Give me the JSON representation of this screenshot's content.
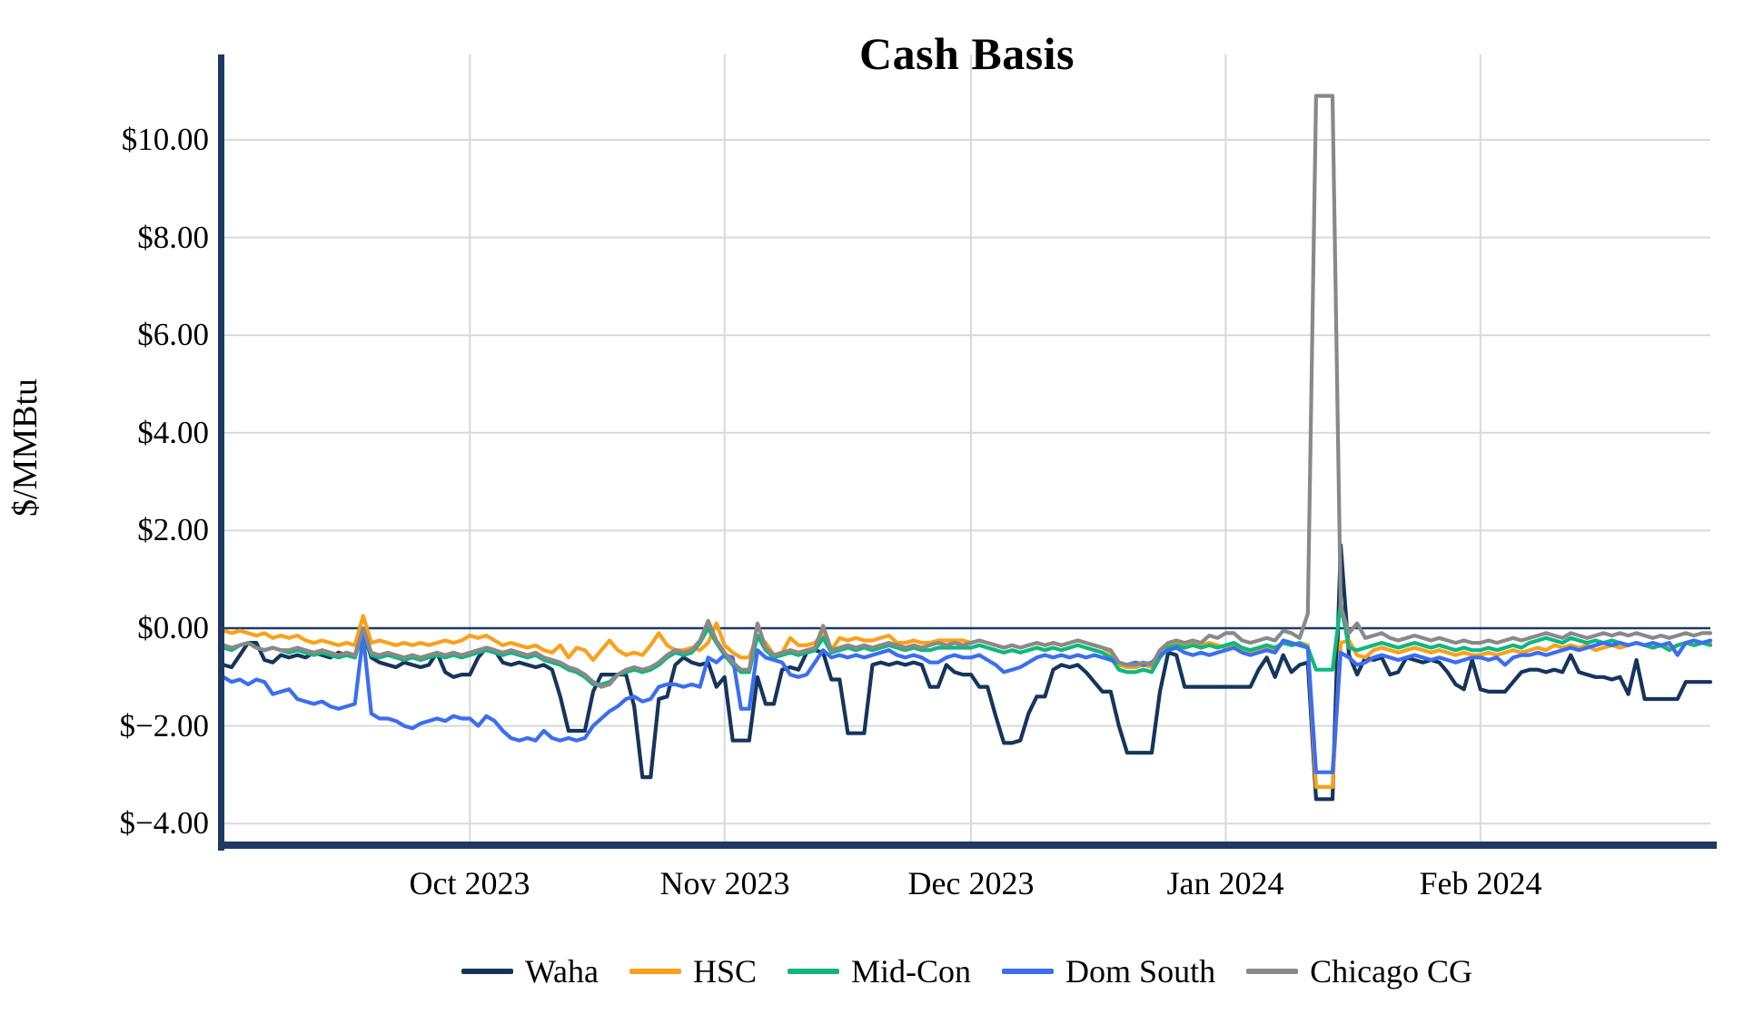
{
  "title": "Cash Basis",
  "y_axis": {
    "label": "$/MMBtu",
    "tick_values": [
      10,
      8,
      6,
      4,
      2,
      0,
      -2,
      -4
    ],
    "tick_labels": [
      "$10.00",
      "$8.00",
      "$6.00",
      "$4.00",
      "$2.00",
      "$0.00",
      "$−2.00",
      "$−4.00"
    ]
  },
  "x_axis": {
    "ticks": [
      {
        "day": 30,
        "label": "Oct 2023"
      },
      {
        "day": 61,
        "label": "Nov 2023"
      },
      {
        "day": 91,
        "label": "Dec 2023"
      },
      {
        "day": 122,
        "label": "Jan 2024"
      },
      {
        "day": 153,
        "label": "Feb 2024"
      }
    ]
  },
  "legend": [
    {
      "label": "Waha",
      "color": "#16355C"
    },
    {
      "label": "HSC",
      "color": "#F9A11B"
    },
    {
      "label": "Mid-Con",
      "color": "#0FB77F"
    },
    {
      "label": "Dom South",
      "color": "#3B6EF0"
    },
    {
      "label": "Chicago CG",
      "color": "#898989"
    }
  ],
  "colors": {
    "axis_spine": "#1F3864",
    "zero_line": "#1F3864",
    "gridline": "#D9D9D9",
    "background": "#FFFFFF"
  },
  "chart_data": {
    "type": "line",
    "title": "Cash Basis",
    "xlabel": "",
    "ylabel": "$/MMBtu",
    "ylim": [
      -4.45,
      11.65
    ],
    "grid": true,
    "legend_position": "bottom",
    "x_unit": "daily points, Sep 2023 through Feb 2024 (index 0 = first point)",
    "x_tick_days": [
      30,
      61,
      91,
      122,
      153
    ],
    "x_tick_labels": [
      "Oct 2023",
      "Nov 2023",
      "Dec 2023",
      "Jan 2024",
      "Feb 2024"
    ],
    "y_tick_values": [
      10,
      8,
      6,
      4,
      2,
      0,
      -2,
      -4
    ],
    "series": [
      {
        "name": "Waha",
        "color": "#16355C",
        "values": [
          -0.75,
          -0.8,
          -0.55,
          -0.3,
          -0.3,
          -0.65,
          -0.7,
          -0.55,
          -0.6,
          -0.55,
          -0.6,
          -0.5,
          -0.55,
          -0.6,
          -0.5,
          -0.55,
          -0.6,
          -0.05,
          -0.6,
          -0.7,
          -0.75,
          -0.8,
          -0.7,
          -0.75,
          -0.8,
          -0.75,
          -0.5,
          -0.9,
          -1.0,
          -0.95,
          -0.95,
          -0.6,
          -0.4,
          -0.45,
          -0.7,
          -0.75,
          -0.7,
          -0.75,
          -0.8,
          -0.75,
          -0.85,
          -1.4,
          -2.1,
          -2.1,
          -2.1,
          -1.3,
          -0.95,
          -0.95,
          -0.95,
          -0.95,
          -1.6,
          -3.05,
          -3.05,
          -1.45,
          -1.4,
          -0.75,
          -0.6,
          -0.7,
          -0.75,
          -0.7,
          -1.2,
          -1.0,
          -2.3,
          -2.3,
          -2.3,
          -1.0,
          -1.55,
          -1.55,
          -0.85,
          -0.8,
          -0.85,
          -0.5,
          -0.45,
          -0.5,
          -1.05,
          -1.05,
          -2.15,
          -2.15,
          -2.15,
          -0.75,
          -0.7,
          -0.75,
          -0.7,
          -0.75,
          -0.7,
          -0.75,
          -1.2,
          -1.2,
          -0.75,
          -0.9,
          -0.95,
          -0.95,
          -1.2,
          -1.2,
          -1.8,
          -2.35,
          -2.35,
          -2.3,
          -1.75,
          -1.4,
          -1.4,
          -0.85,
          -0.75,
          -0.8,
          -0.75,
          -0.9,
          -1.1,
          -1.3,
          -1.3,
          -2.0,
          -2.55,
          -2.55,
          -2.55,
          -2.55,
          -1.3,
          -0.5,
          -0.55,
          -1.2,
          -1.2,
          -1.2,
          -1.2,
          -1.2,
          -1.2,
          -1.2,
          -1.2,
          -1.2,
          -0.85,
          -0.6,
          -1.0,
          -0.55,
          -0.9,
          -0.75,
          -0.7,
          -3.5,
          -3.5,
          -3.5,
          1.7,
          -0.55,
          -0.95,
          -0.6,
          -0.65,
          -0.6,
          -0.95,
          -0.9,
          -0.6,
          -0.65,
          -0.7,
          -0.65,
          -0.7,
          -0.9,
          -1.15,
          -1.25,
          -0.65,
          -1.25,
          -1.3,
          -1.3,
          -1.3,
          -1.1,
          -0.9,
          -0.85,
          -0.85,
          -0.9,
          -0.85,
          -0.9,
          -0.55,
          -0.9,
          -0.95,
          -1.0,
          -1.0,
          -1.05,
          -1.0,
          -1.35,
          -0.65,
          -1.45,
          -1.45,
          -1.45,
          -1.45,
          -1.45,
          -1.1,
          -1.1,
          -1.1,
          -1.1
        ]
      },
      {
        "name": "HSC",
        "color": "#F9A11B",
        "values": [
          -0.05,
          -0.1,
          -0.05,
          -0.1,
          -0.15,
          -0.1,
          -0.2,
          -0.15,
          -0.2,
          -0.15,
          -0.25,
          -0.3,
          -0.25,
          -0.3,
          -0.35,
          -0.3,
          -0.35,
          0.25,
          -0.3,
          -0.25,
          -0.3,
          -0.35,
          -0.3,
          -0.35,
          -0.3,
          -0.35,
          -0.3,
          -0.25,
          -0.3,
          -0.25,
          -0.15,
          -0.2,
          -0.15,
          -0.25,
          -0.35,
          -0.3,
          -0.35,
          -0.4,
          -0.35,
          -0.45,
          -0.5,
          -0.35,
          -0.6,
          -0.4,
          -0.45,
          -0.65,
          -0.45,
          -0.25,
          -0.45,
          -0.55,
          -0.5,
          -0.55,
          -0.35,
          -0.1,
          -0.35,
          -0.45,
          -0.45,
          -0.4,
          -0.45,
          -0.3,
          0.1,
          -0.35,
          -0.5,
          -0.6,
          -0.6,
          -0.15,
          -0.3,
          -0.55,
          -0.5,
          -0.2,
          -0.35,
          -0.35,
          -0.3,
          -0.1,
          -0.45,
          -0.2,
          -0.25,
          -0.2,
          -0.25,
          -0.25,
          -0.2,
          -0.15,
          -0.3,
          -0.3,
          -0.25,
          -0.3,
          -0.3,
          -0.25,
          -0.25,
          -0.25,
          -0.25,
          -0.3,
          -0.25,
          -0.3,
          -0.35,
          -0.4,
          -0.35,
          -0.4,
          -0.35,
          -0.3,
          -0.35,
          -0.3,
          -0.35,
          -0.3,
          -0.25,
          -0.3,
          -0.35,
          -0.4,
          -0.5,
          -0.75,
          -0.8,
          -0.8,
          -0.75,
          -0.8,
          -0.5,
          -0.35,
          -0.3,
          -0.35,
          -0.3,
          -0.35,
          -0.3,
          -0.35,
          -0.4,
          -0.35,
          -0.45,
          -0.5,
          -0.45,
          -0.4,
          -0.45,
          -0.3,
          -0.35,
          -0.3,
          -0.35,
          -3.25,
          -3.25,
          -3.25,
          -0.3,
          -0.25,
          -0.55,
          -0.6,
          -0.45,
          -0.4,
          -0.45,
          -0.5,
          -0.45,
          -0.4,
          -0.45,
          -0.5,
          -0.45,
          -0.5,
          -0.55,
          -0.5,
          -0.55,
          -0.55,
          -0.5,
          -0.55,
          -0.5,
          -0.45,
          -0.5,
          -0.45,
          -0.4,
          -0.45,
          -0.35,
          -0.4,
          -0.35,
          -0.4,
          -0.35,
          -0.45,
          -0.4,
          -0.35,
          -0.4,
          -0.35,
          -0.3,
          -0.35,
          -0.4,
          -0.35,
          -0.4,
          -0.35,
          -0.3,
          -0.35,
          -0.3,
          -0.3
        ]
      },
      {
        "name": "Mid-Con",
        "color": "#0FB77F",
        "values": [
          -0.4,
          -0.45,
          -0.35,
          -0.3,
          -0.4,
          -0.45,
          -0.4,
          -0.45,
          -0.5,
          -0.45,
          -0.5,
          -0.55,
          -0.5,
          -0.55,
          -0.6,
          -0.55,
          -0.6,
          -0.05,
          -0.55,
          -0.6,
          -0.55,
          -0.6,
          -0.65,
          -0.6,
          -0.65,
          -0.6,
          -0.55,
          -0.6,
          -0.55,
          -0.6,
          -0.55,
          -0.5,
          -0.45,
          -0.5,
          -0.55,
          -0.5,
          -0.55,
          -0.6,
          -0.55,
          -0.65,
          -0.7,
          -0.75,
          -0.85,
          -0.9,
          -1.0,
          -1.15,
          -1.15,
          -1.1,
          -0.95,
          -0.9,
          -0.85,
          -0.9,
          -0.85,
          -0.75,
          -0.6,
          -0.5,
          -0.55,
          -0.5,
          -0.3,
          0.0,
          -0.3,
          -0.55,
          -0.75,
          -0.9,
          -0.9,
          -0.15,
          -0.45,
          -0.6,
          -0.55,
          -0.5,
          -0.55,
          -0.5,
          -0.45,
          -0.2,
          -0.5,
          -0.45,
          -0.4,
          -0.45,
          -0.4,
          -0.45,
          -0.4,
          -0.35,
          -0.4,
          -0.45,
          -0.4,
          -0.45,
          -0.45,
          -0.4,
          -0.4,
          -0.4,
          -0.4,
          -0.4,
          -0.35,
          -0.4,
          -0.45,
          -0.5,
          -0.45,
          -0.5,
          -0.45,
          -0.4,
          -0.45,
          -0.4,
          -0.45,
          -0.4,
          -0.35,
          -0.4,
          -0.45,
          -0.5,
          -0.6,
          -0.85,
          -0.9,
          -0.9,
          -0.85,
          -0.9,
          -0.6,
          -0.4,
          -0.35,
          -0.4,
          -0.35,
          -0.4,
          -0.35,
          -0.4,
          -0.35,
          -0.3,
          -0.4,
          -0.45,
          -0.4,
          -0.35,
          -0.4,
          -0.3,
          -0.35,
          -0.3,
          -0.4,
          -0.85,
          -0.85,
          -0.85,
          0.5,
          -0.4,
          -0.45,
          -0.4,
          -0.35,
          -0.3,
          -0.35,
          -0.4,
          -0.35,
          -0.3,
          -0.35,
          -0.4,
          -0.35,
          -0.4,
          -0.45,
          -0.4,
          -0.45,
          -0.45,
          -0.4,
          -0.45,
          -0.4,
          -0.35,
          -0.4,
          -0.3,
          -0.25,
          -0.2,
          -0.25,
          -0.3,
          -0.2,
          -0.25,
          -0.3,
          -0.25,
          -0.3,
          -0.25,
          -0.3,
          -0.35,
          -0.3,
          -0.35,
          -0.4,
          -0.35,
          -0.45,
          -0.35,
          -0.3,
          -0.35,
          -0.3,
          -0.35
        ]
      },
      {
        "name": "Dom South",
        "color": "#3B6EF0",
        "values": [
          -1.0,
          -1.1,
          -1.05,
          -1.15,
          -1.05,
          -1.1,
          -1.35,
          -1.3,
          -1.25,
          -1.45,
          -1.5,
          -1.55,
          -1.5,
          -1.6,
          -1.65,
          -1.6,
          -1.55,
          -0.15,
          -1.75,
          -1.85,
          -1.85,
          -1.9,
          -2.0,
          -2.05,
          -1.95,
          -1.9,
          -1.85,
          -1.9,
          -1.8,
          -1.85,
          -1.85,
          -2.0,
          -1.8,
          -1.9,
          -2.1,
          -2.25,
          -2.3,
          -2.25,
          -2.3,
          -2.1,
          -2.25,
          -2.3,
          -2.25,
          -2.3,
          -2.25,
          -2.0,
          -1.85,
          -1.7,
          -1.6,
          -1.45,
          -1.4,
          -1.5,
          -1.45,
          -1.2,
          -1.15,
          -1.15,
          -1.2,
          -1.15,
          -1.2,
          -0.6,
          -0.7,
          -0.55,
          -0.6,
          -1.65,
          -1.65,
          -0.45,
          -0.6,
          -0.65,
          -0.7,
          -0.95,
          -1.0,
          -0.95,
          -0.7,
          -0.45,
          -0.6,
          -0.55,
          -0.6,
          -0.55,
          -0.6,
          -0.55,
          -0.5,
          -0.45,
          -0.55,
          -0.6,
          -0.55,
          -0.6,
          -0.7,
          -0.7,
          -0.6,
          -0.55,
          -0.6,
          -0.6,
          -0.55,
          -0.65,
          -0.75,
          -0.9,
          -0.85,
          -0.8,
          -0.7,
          -0.6,
          -0.55,
          -0.6,
          -0.55,
          -0.6,
          -0.55,
          -0.6,
          -0.55,
          -0.6,
          -0.65,
          -0.7,
          -0.75,
          -0.7,
          -0.75,
          -0.7,
          -0.55,
          -0.45,
          -0.4,
          -0.5,
          -0.55,
          -0.5,
          -0.55,
          -0.5,
          -0.45,
          -0.4,
          -0.5,
          -0.55,
          -0.5,
          -0.45,
          -0.5,
          -0.25,
          -0.3,
          -0.35,
          -0.4,
          -2.95,
          -2.95,
          -2.95,
          -0.5,
          -0.6,
          -0.75,
          -0.7,
          -0.6,
          -0.55,
          -0.6,
          -0.65,
          -0.6,
          -0.55,
          -0.6,
          -0.65,
          -0.6,
          -0.65,
          -0.7,
          -0.65,
          -0.6,
          -0.6,
          -0.65,
          -0.6,
          -0.75,
          -0.6,
          -0.55,
          -0.55,
          -0.5,
          -0.55,
          -0.5,
          -0.45,
          -0.4,
          -0.45,
          -0.4,
          -0.35,
          -0.3,
          -0.35,
          -0.3,
          -0.35,
          -0.3,
          -0.35,
          -0.3,
          -0.35,
          -0.3,
          -0.55,
          -0.3,
          -0.25,
          -0.3,
          -0.25
        ]
      },
      {
        "name": "Chicago CG",
        "color": "#898989",
        "values": [
          -0.35,
          -0.4,
          -0.35,
          -0.3,
          -0.4,
          -0.45,
          -0.4,
          -0.45,
          -0.45,
          -0.4,
          -0.45,
          -0.5,
          -0.45,
          -0.5,
          -0.55,
          -0.5,
          -0.55,
          0.0,
          -0.5,
          -0.55,
          -0.5,
          -0.55,
          -0.6,
          -0.55,
          -0.6,
          -0.55,
          -0.5,
          -0.55,
          -0.5,
          -0.55,
          -0.5,
          -0.45,
          -0.4,
          -0.45,
          -0.5,
          -0.45,
          -0.5,
          -0.55,
          -0.5,
          -0.6,
          -0.65,
          -0.7,
          -0.8,
          -0.85,
          -0.95,
          -1.1,
          -1.2,
          -1.15,
          -0.95,
          -0.85,
          -0.8,
          -0.85,
          -0.8,
          -0.7,
          -0.55,
          -0.45,
          -0.5,
          -0.45,
          -0.25,
          0.15,
          -0.25,
          -0.5,
          -0.7,
          -0.85,
          -0.85,
          0.1,
          -0.4,
          -0.55,
          -0.5,
          -0.45,
          -0.5,
          -0.45,
          -0.4,
          0.05,
          -0.45,
          -0.4,
          -0.35,
          -0.4,
          -0.35,
          -0.4,
          -0.35,
          -0.3,
          -0.35,
          -0.4,
          -0.35,
          -0.4,
          -0.35,
          -0.3,
          -0.35,
          -0.3,
          -0.35,
          -0.3,
          -0.25,
          -0.3,
          -0.35,
          -0.4,
          -0.35,
          -0.4,
          -0.35,
          -0.3,
          -0.35,
          -0.3,
          -0.35,
          -0.3,
          -0.25,
          -0.3,
          -0.35,
          -0.4,
          -0.45,
          -0.7,
          -0.75,
          -0.75,
          -0.7,
          -0.75,
          -0.45,
          -0.3,
          -0.25,
          -0.3,
          -0.25,
          -0.3,
          -0.15,
          -0.2,
          -0.1,
          -0.1,
          -0.25,
          -0.3,
          -0.25,
          -0.2,
          -0.25,
          -0.05,
          -0.1,
          -0.2,
          0.3,
          10.9,
          10.9,
          10.9,
          0.45,
          -0.1,
          0.1,
          -0.2,
          -0.15,
          -0.1,
          -0.2,
          -0.25,
          -0.2,
          -0.15,
          -0.2,
          -0.25,
          -0.2,
          -0.25,
          -0.3,
          -0.25,
          -0.3,
          -0.3,
          -0.25,
          -0.3,
          -0.25,
          -0.2,
          -0.25,
          -0.2,
          -0.15,
          -0.1,
          -0.15,
          -0.2,
          -0.1,
          -0.15,
          -0.2,
          -0.15,
          -0.1,
          -0.15,
          -0.1,
          -0.15,
          -0.1,
          -0.15,
          -0.2,
          -0.15,
          -0.2,
          -0.15,
          -0.1,
          -0.15,
          -0.1,
          -0.1
        ]
      }
    ]
  }
}
